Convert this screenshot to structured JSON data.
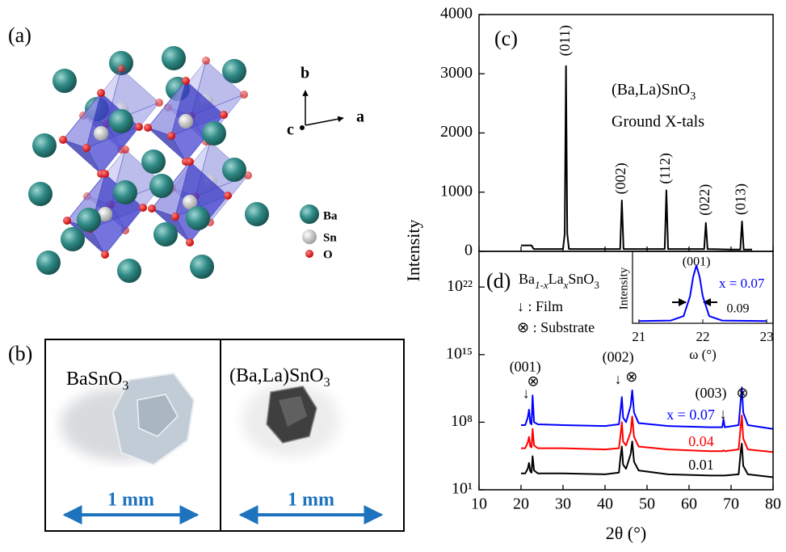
{
  "structure": {
    "label": "(a)",
    "axes": [
      "a",
      "b",
      "c"
    ],
    "atoms": [
      "Ba",
      "Sn",
      "O"
    ]
  },
  "photos": {
    "label": "(b)",
    "left": {
      "formula": [
        "BaSnO",
        "3"
      ],
      "scale": "1 mm"
    },
    "right": {
      "formula": [
        "(Ba,La)SnO",
        "3"
      ],
      "scale": "1 mm"
    }
  },
  "chart_data": [
    {
      "type": "line",
      "label": "(c)",
      "y_label": "Intensity",
      "formula": [
        "(Ba,La)SnO",
        "3"
      ],
      "note": "Ground X-tals",
      "x": [
        20,
        20.5,
        21.5,
        22.5,
        23,
        25,
        30,
        30.4,
        30.7,
        31.0,
        31.4,
        35,
        40,
        43.6,
        44.0,
        44.4,
        50,
        54.2,
        54.6,
        55.0,
        60,
        63.6,
        64.0,
        64.4,
        70,
        72.2,
        72.6,
        73.0,
        75
      ],
      "series": [
        {
          "color": "#000000",
          "values": [
            100,
            100,
            100,
            100,
            40,
            40,
            40,
            300,
            3130,
            300,
            40,
            40,
            40,
            40,
            860,
            40,
            40,
            40,
            1030,
            40,
            40,
            40,
            480,
            40,
            30,
            30,
            505,
            30,
            30
          ]
        }
      ],
      "xlim": [
        10,
        80
      ],
      "xticks": [
        10,
        20,
        30,
        40,
        50,
        60,
        70,
        80
      ],
      "ylim": [
        0,
        4000
      ],
      "yticks": [
        0,
        1000,
        2000,
        3000,
        4000
      ],
      "annotations": [
        {
          "text": "(011)",
          "x": 30.7,
          "y": 3560
        },
        {
          "text": "(002)",
          "x": 44.0,
          "y": 1230
        },
        {
          "text": "(112)",
          "x": 54.6,
          "y": 1400
        },
        {
          "text": "(022)",
          "x": 64.0,
          "y": 870
        },
        {
          "text": "(013)",
          "x": 72.6,
          "y": 880
        }
      ]
    },
    {
      "type": "line",
      "label": "(d)",
      "formula": [
        "Ba",
        "1-x",
        "La",
        "x",
        "SnO",
        "3"
      ],
      "legend": [
        "↓ : Film",
        "⊗ : Substrate"
      ],
      "x_label": "2θ (°)",
      "log_y": true,
      "x": [
        20,
        21,
        21.6,
        21.9,
        22.2,
        22.5,
        22.75,
        23.1,
        24,
        30,
        40,
        43.3,
        43.7,
        44.0,
        44.3,
        45,
        46.1,
        46.47,
        46.9,
        48,
        55,
        65,
        67.9,
        68.2,
        68.5,
        71.8,
        72.3,
        72.56,
        72.9,
        74,
        80
      ],
      "series": [
        {
          "name": "x = 0.07",
          "color": "#0000ff",
          "values": [
            50000000.0,
            50000000.0,
            300000000.0,
            2000000000.0,
            80000000.0,
            60000000.0,
            60000000000.0,
            100000000.0,
            60000000.0,
            50000000.0,
            40000000.0,
            60000000.0,
            2000000000.0,
            40000000000.0,
            300000000.0,
            100000000.0,
            5000000000.0,
            200000000000.0,
            1000000000.0,
            80000000.0,
            40000000.0,
            30000000.0,
            30000000.0,
            200000000.0,
            30000000.0,
            50000000.0,
            20000000000.0,
            400000000000.0,
            1000000000.0,
            50000000.0,
            20000000.0
          ]
        },
        {
          "name": "0.04",
          "color": "#ff0000",
          "values": [
            200000.0,
            200000.0,
            800000.0,
            3000000.0,
            300000.0,
            250000.0,
            20000000.0,
            400000.0,
            200000.0,
            200000.0,
            150000.0,
            200000.0,
            5000000.0,
            100000000.0,
            1000000.0,
            400000.0,
            10000000.0,
            400000000.0,
            3000000.0,
            300000.0,
            150000.0,
            100000.0,
            100000.0,
            120000.0,
            100000.0,
            150000.0,
            40000000.0,
            500000000.0,
            2000000.0,
            150000.0,
            80000.0
          ]
        },
        {
          "name": "0.01",
          "color": "#000000",
          "values": [
            500,
            500,
            1500,
            6000,
            800,
            600,
            30000,
            1000,
            500,
            500,
            400,
            600,
            30000,
            300000,
            4000,
            1500,
            50000,
            1000000,
            8000,
            1000,
            400,
            300,
            300,
            300,
            300,
            400,
            100000,
            600000,
            3000,
            400,
            200
          ]
        }
      ],
      "xlim": [
        10,
        80
      ],
      "xticks": [
        10,
        20,
        30,
        40,
        50,
        60,
        70,
        80
      ],
      "ylim": [
        10,
        5e+25
      ],
      "yticks": [
        {
          "value": 10,
          "label": "10¹"
        },
        {
          "value": 100000000.0,
          "label": "10⁸"
        },
        {
          "value": 1000000000000000.0,
          "label": "10¹⁵"
        },
        {
          "value": 1e+22,
          "label": "10²²"
        }
      ],
      "annotations": [
        {
          "text": "(001)",
          "x": 21.0,
          "y": 40000000000000.0
        },
        {
          "text": "↓",
          "x": 21.2,
          "y": 70000000000.0
        },
        {
          "text": "⊗",
          "x": 22.9,
          "y": 1300000000000.0
        },
        {
          "text": "(002)",
          "x": 43.1,
          "y": 400000000000000.0
        },
        {
          "text": "↓",
          "x": 43.1,
          "y": 2000000000000.0
        },
        {
          "text": "⊗",
          "x": 46.3,
          "y": 3500000000000.0
        },
        {
          "text": "(003)",
          "x": 65.2,
          "y": 80000000000.0
        },
        {
          "text": "⊗",
          "x": 72.7,
          "y": 80000000000.0
        },
        {
          "text": "↓",
          "x": 68.1,
          "y": 500000000.0
        }
      ],
      "inset": {
        "type": "line",
        "x_label": "ω (°)",
        "y_label": "Intensity",
        "x": [
          21.0,
          21.5,
          21.7,
          21.8,
          21.85,
          21.9,
          21.95,
          22.0,
          22.1,
          22.3,
          23.0
        ],
        "series": [
          {
            "name": "x = 0.07",
            "color": "#0000ff",
            "values": [
              0.01,
              0.02,
              0.1,
              0.45,
              0.8,
              1.0,
              0.8,
              0.45,
              0.1,
              0.02,
              0.01
            ]
          }
        ],
        "xlim": [
          20.9,
          23.1
        ],
        "xticks": [
          21,
          22,
          23
        ],
        "ylim": [
          0,
          1.15
        ],
        "annotations": [
          {
            "text": "(001)",
            "x": 21.9,
            "y": 1.05
          },
          {
            "text": "0.09",
            "x": 22.55,
            "y": 0.22
          }
        ]
      }
    }
  ]
}
